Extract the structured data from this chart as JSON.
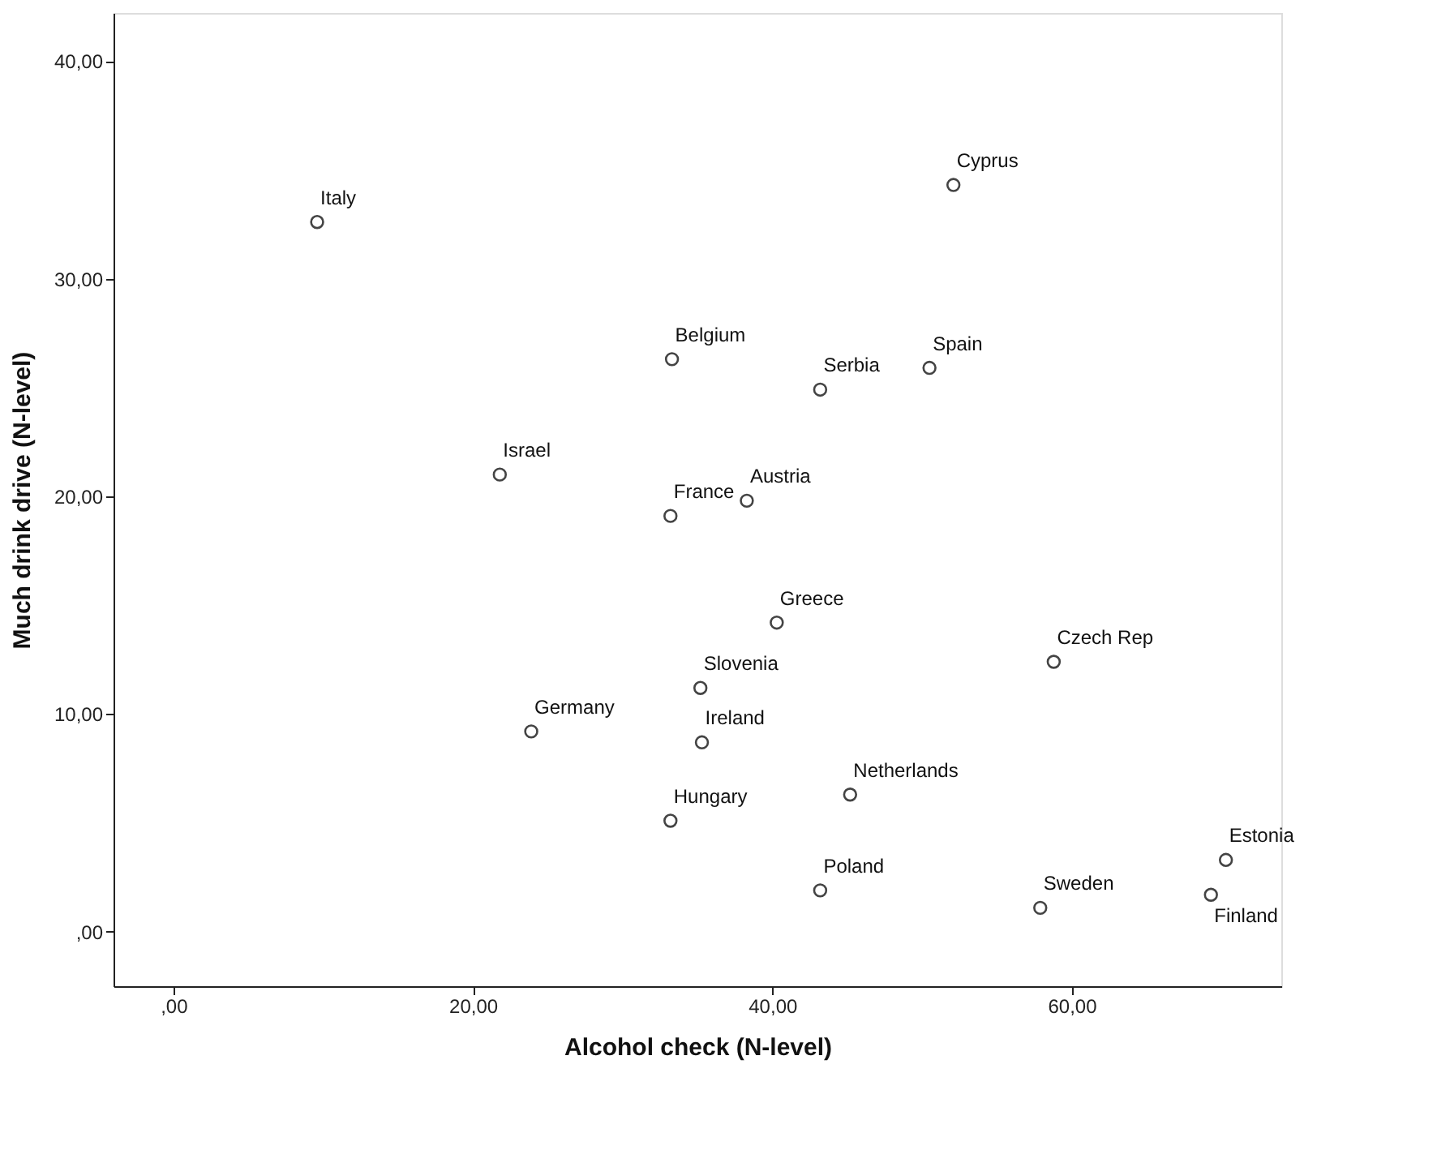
{
  "chart_data": {
    "type": "scatter",
    "xlabel": "Alcohol check (N-level)",
    "ylabel": "Much drink drive (N-level)",
    "xlim": [
      -4,
      74
    ],
    "ylim": [
      -2.5,
      42.2
    ],
    "xticks": [
      {
        "value": 0,
        "label": ",00"
      },
      {
        "value": 20,
        "label": "20,00"
      },
      {
        "value": 40,
        "label": "40,00"
      },
      {
        "value": 60,
        "label": "60,00"
      }
    ],
    "yticks": [
      {
        "value": 0,
        "label": ",00"
      },
      {
        "value": 10,
        "label": "10,00"
      },
      {
        "value": 20,
        "label": "20,00"
      },
      {
        "value": 30,
        "label": "30,00"
      },
      {
        "value": 40,
        "label": "40,00"
      }
    ],
    "grid": false,
    "marker": "circle",
    "series": [
      {
        "color": "#444444",
        "x": [
          9.6,
          52.1,
          33.3,
          43.2,
          50.5,
          21.8,
          33.2,
          38.3,
          40.3,
          58.8,
          35.2,
          23.9,
          35.3,
          45.2,
          33.2,
          43.2,
          57.9,
          70.3,
          69.3
        ],
        "values": [
          32.6,
          34.3,
          26.3,
          24.9,
          25.9,
          21.0,
          19.1,
          19.8,
          14.2,
          12.4,
          11.2,
          9.2,
          8.7,
          6.3,
          5.1,
          1.9,
          1.1,
          3.3,
          1.7
        ],
        "value_labels": [
          "Italy",
          "Cyprus",
          "Belgium",
          "Serbia",
          "Spain",
          "Israel",
          "France",
          "Austria",
          "Greece",
          "Czech Rep",
          "Slovenia",
          "Germany",
          "Ireland",
          "Netherlands",
          "Hungary",
          "Poland",
          "Sweden",
          "Estonia",
          "Finland"
        ]
      }
    ]
  }
}
